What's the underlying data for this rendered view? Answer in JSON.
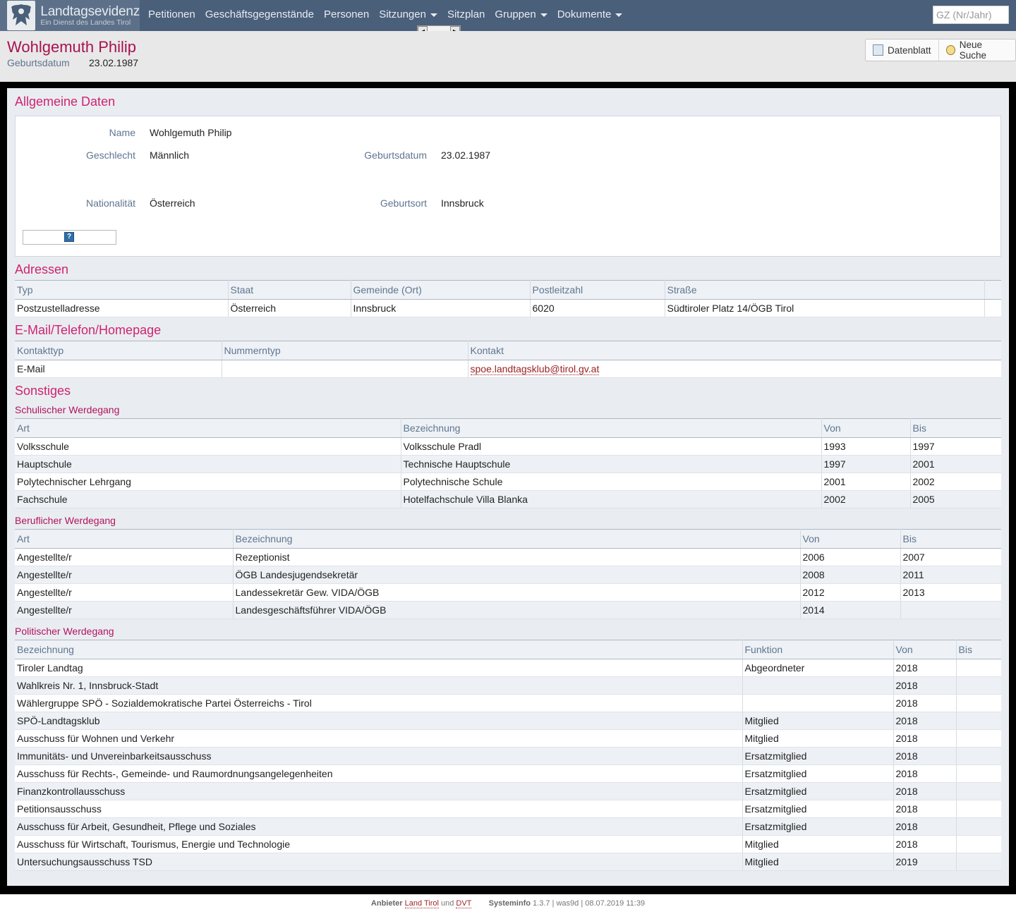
{
  "brand": {
    "title": "Landtagsevidenz",
    "subtitle": "Ein Dienst des Landes Tirol",
    "logo_icon": "tirol-eagle-logo"
  },
  "nav": {
    "items": [
      {
        "label": "Petitionen",
        "dropdown": false
      },
      {
        "label": "Geschäftsgegenstände",
        "dropdown": false
      },
      {
        "label": "Personen",
        "dropdown": false
      },
      {
        "label": "Sitzungen",
        "dropdown": true
      },
      {
        "label": "Sitzplan",
        "dropdown": false
      },
      {
        "label": "Gruppen",
        "dropdown": true
      },
      {
        "label": "Dokumente",
        "dropdown": true
      }
    ],
    "search_placeholder": "GZ (Nr/Jahr)"
  },
  "header": {
    "name": "Wohlgemuth Philip",
    "birth_label": "Geburtsdatum",
    "birth_value": "23.02.1987",
    "btn_datenblatt": "Datenblatt",
    "btn_neue_suche": "Neue Suche"
  },
  "allgemein": {
    "title": "Allgemeine Daten",
    "name_label": "Name",
    "name_value": "Wohlgemuth Philip",
    "gender_label": "Geschlecht",
    "gender_value": "Männlich",
    "birth_label": "Geburtsdatum",
    "birth_value": "23.02.1987",
    "nat_label": "Nationalität",
    "nat_value": "Österreich",
    "place_label": "Geburtsort",
    "place_value": "Innsbruck",
    "help_icon": "?"
  },
  "adressen": {
    "title": "Adressen",
    "columns": [
      "Typ",
      "Staat",
      "Gemeinde (Ort)",
      "Postleitzahl",
      "Straße",
      ""
    ],
    "rows": [
      [
        "Postzustelladresse",
        "Österreich",
        "Innsbruck",
        "6020",
        "Südtiroler Platz 14/ÖGB Tirol",
        ""
      ]
    ]
  },
  "kontakt": {
    "title": "E-Mail/Telefon/Homepage",
    "columns": [
      "Kontakttyp",
      "Nummerntyp",
      "Kontakt"
    ],
    "rows": [
      [
        "E-Mail",
        "",
        "spoe.landtagsklub@tirol.gv.at"
      ]
    ]
  },
  "sonstiges": {
    "title": "Sonstiges"
  },
  "schule": {
    "title": "Schulischer Werdegang",
    "columns": [
      "Art",
      "Bezeichnung",
      "Von",
      "Bis"
    ],
    "rows": [
      [
        "Volksschule",
        "Volksschule Pradl",
        "1993",
        "1997"
      ],
      [
        "Hauptschule",
        "Technische Hauptschule",
        "1997",
        "2001"
      ],
      [
        "Polytechnischer Lehrgang",
        "Polytechnische Schule",
        "2001",
        "2002"
      ],
      [
        "Fachschule",
        "Hotelfachschule Villa Blanka",
        "2002",
        "2005"
      ]
    ]
  },
  "beruf": {
    "title": "Beruflicher Werdegang",
    "columns": [
      "Art",
      "Bezeichnung",
      "Von",
      "Bis"
    ],
    "rows": [
      [
        "Angestellte/r",
        "Rezeptionist",
        "2006",
        "2007"
      ],
      [
        "Angestellte/r",
        "ÖGB Landesjugendsekretär",
        "2008",
        "2011"
      ],
      [
        "Angestellte/r",
        "Landessekretär Gew. VIDA/ÖGB",
        "2012",
        "2013"
      ],
      [
        "Angestellte/r",
        "Landesgeschäftsführer VIDA/ÖGB",
        "2014",
        ""
      ]
    ]
  },
  "politik": {
    "title": "Politischer Werdegang",
    "columns": [
      "Bezeichnung",
      "Funktion",
      "Von",
      "Bis"
    ],
    "rows": [
      [
        "Tiroler Landtag",
        "Abgeordneter",
        "2018",
        ""
      ],
      [
        "Wahlkreis Nr. 1, Innsbruck-Stadt",
        "",
        "2018",
        ""
      ],
      [
        "Wählergruppe SPÖ - Sozialdemokratische Partei Österreichs - Tirol",
        "",
        "2018",
        ""
      ],
      [
        "SPÖ-Landtagsklub",
        "Mitglied",
        "2018",
        ""
      ],
      [
        "Ausschuss für Wohnen und Verkehr",
        "Mitglied",
        "2018",
        ""
      ],
      [
        "Immunitäts- und Unvereinbarkeitsausschuss",
        "Ersatzmitglied",
        "2018",
        ""
      ],
      [
        "Ausschuss für Rechts-, Gemeinde- und Raumordnungsangelegenheiten",
        "Ersatzmitglied",
        "2018",
        ""
      ],
      [
        "Finanzkontrollausschuss",
        "Ersatzmitglied",
        "2018",
        ""
      ],
      [
        "Petitionsausschuss",
        "Ersatzmitglied",
        "2018",
        ""
      ],
      [
        "Ausschuss für Arbeit, Gesundheit, Pflege und Soziales",
        "Ersatzmitglied",
        "2018",
        ""
      ],
      [
        "Ausschuss für Wirtschaft, Tourismus, Energie und Technologie",
        "Mitglied",
        "2018",
        ""
      ],
      [
        "Untersuchungsausschuss TSD",
        "Mitglied",
        "2019",
        ""
      ]
    ]
  },
  "footer": {
    "anbieter_label": "Anbieter",
    "link1": "Land Tirol",
    "und": "und",
    "link2": "DVT",
    "sysinfo_label": "Systeminfo",
    "sysinfo_value": "1.3.7 | was9d | 08.07.2019 11:39"
  }
}
